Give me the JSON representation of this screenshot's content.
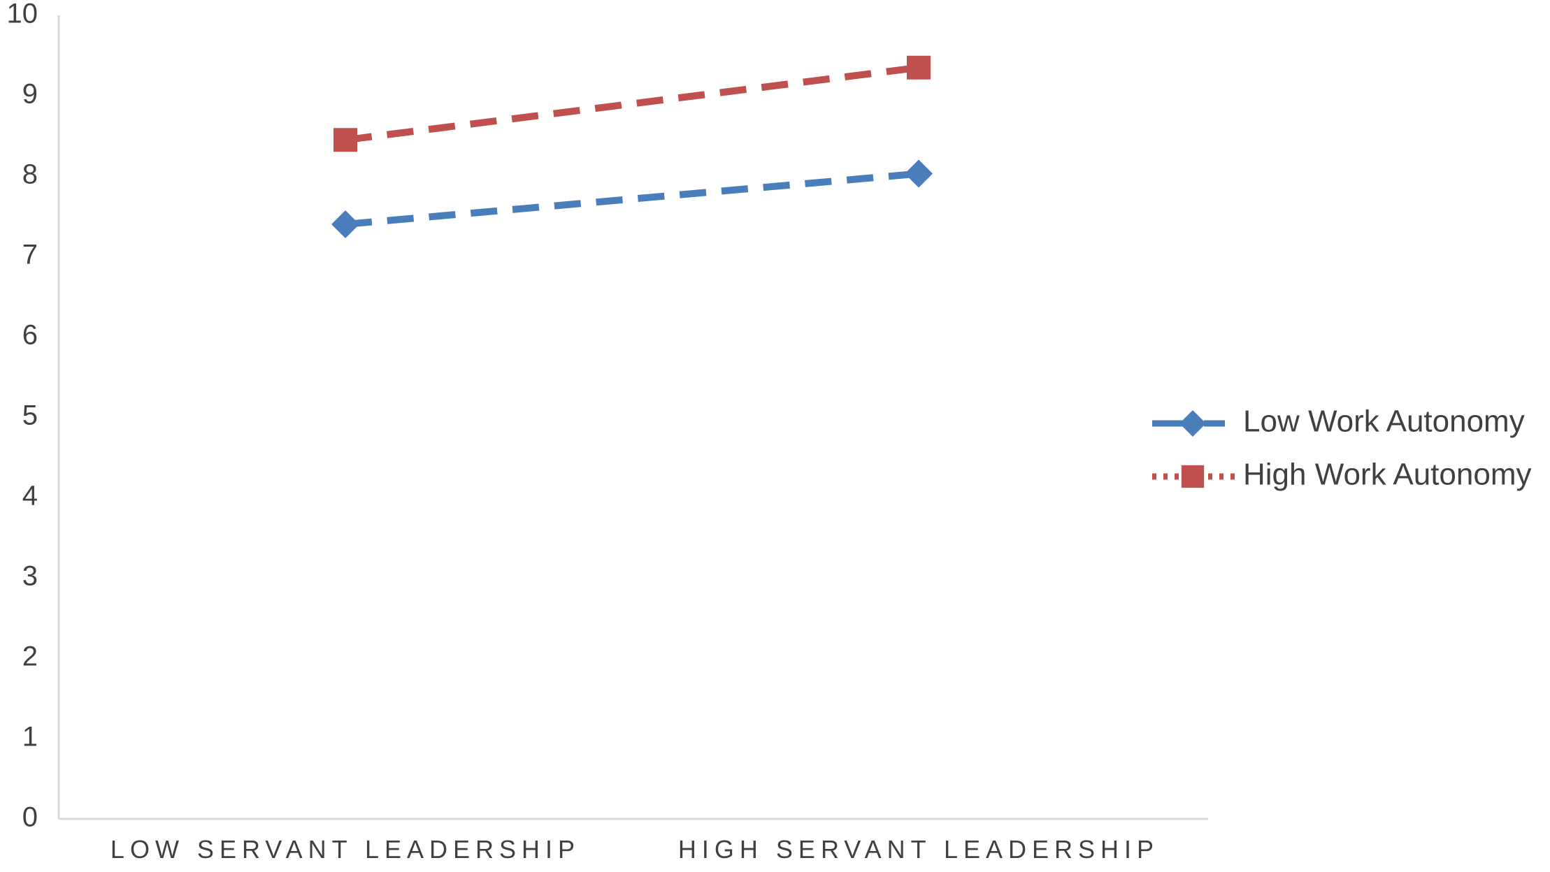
{
  "chart_data": {
    "type": "line",
    "categories": [
      "LOW SERVANT LEADERSHIP",
      "HIGH SERVANT LEADERSHIP"
    ],
    "ylim": [
      0,
      10
    ],
    "yticks": [
      0,
      1,
      2,
      3,
      4,
      5,
      6,
      7,
      8,
      9,
      10
    ],
    "grid": false,
    "legend_position": "right",
    "series": [
      {
        "name": "Low Work Autonomy",
        "values": [
          7.4,
          8.03
        ],
        "color": "#4a7ebb",
        "marker": "diamond",
        "line_style": "dashed"
      },
      {
        "name": "High Work Autonomy",
        "values": [
          8.45,
          9.35
        ],
        "color": "#c0504d",
        "marker": "square",
        "line_style": "dashed"
      }
    ]
  }
}
